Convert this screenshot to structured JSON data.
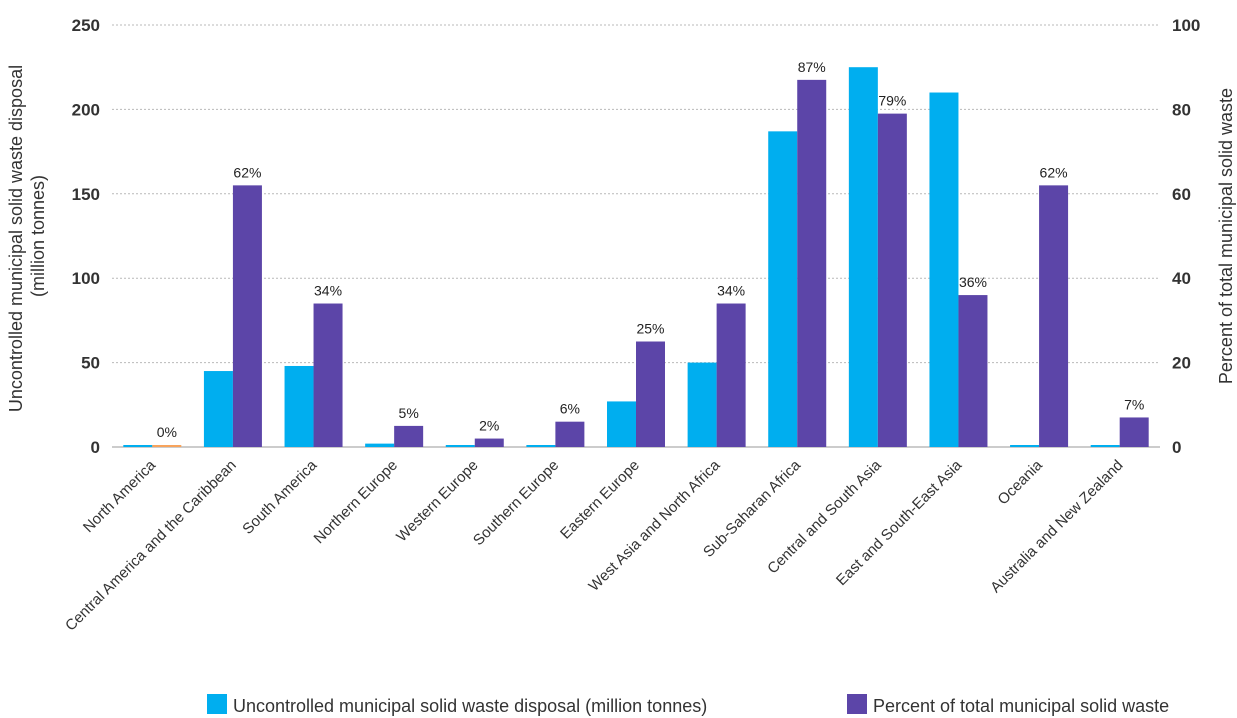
{
  "chart_data": {
    "type": "bar",
    "categories": [
      "North America",
      "Central America and the Caribbean",
      "South America",
      "Northern Europe",
      "Western Europe",
      "Southern Europe",
      "Eastern Europe",
      "West Asia and North Africa",
      "Sub-Saharan Africa",
      "Central and South Asia",
      "East and South-East Asia",
      "Oceania",
      "Australia and New Zealand"
    ],
    "series": [
      {
        "name": "Uncontrolled municipal solid waste disposal (million tonnes)",
        "axis": "left",
        "color": "#00aeef",
        "values": [
          1,
          45,
          48,
          2,
          1,
          1,
          27,
          50,
          187,
          225,
          210,
          1,
          1
        ]
      },
      {
        "name": "Percent of total municipal solid waste",
        "axis": "right",
        "color": "#5c45a8",
        "values": [
          0,
          62,
          34,
          5,
          2,
          6,
          25,
          34,
          87,
          79,
          36,
          62,
          7
        ],
        "labels": [
          "0%",
          "62%",
          "34%",
          "5%",
          "2%",
          "6%",
          "25%",
          "34%",
          "87%",
          "79%",
          "36%",
          "62%",
          "7%"
        ]
      }
    ],
    "highlight_color": "#f7a35c",
    "ylabel": "Uncontrolled municipal solid waste disposal\n(million tonnes)",
    "ylabel_lines": [
      "Uncontrolled municipal solid waste disposal",
      "(million tonnes)"
    ],
    "y2label": "Percent of total municipal solid waste",
    "ylim": [
      0,
      250
    ],
    "y2lim": [
      0,
      100
    ],
    "yticks": [
      "0",
      "50",
      "100",
      "150",
      "200",
      "250"
    ],
    "y2ticks": [
      "0",
      "20",
      "40",
      "60",
      "80",
      "100"
    ],
    "grid": true,
    "legend_position": "bottom-right"
  }
}
